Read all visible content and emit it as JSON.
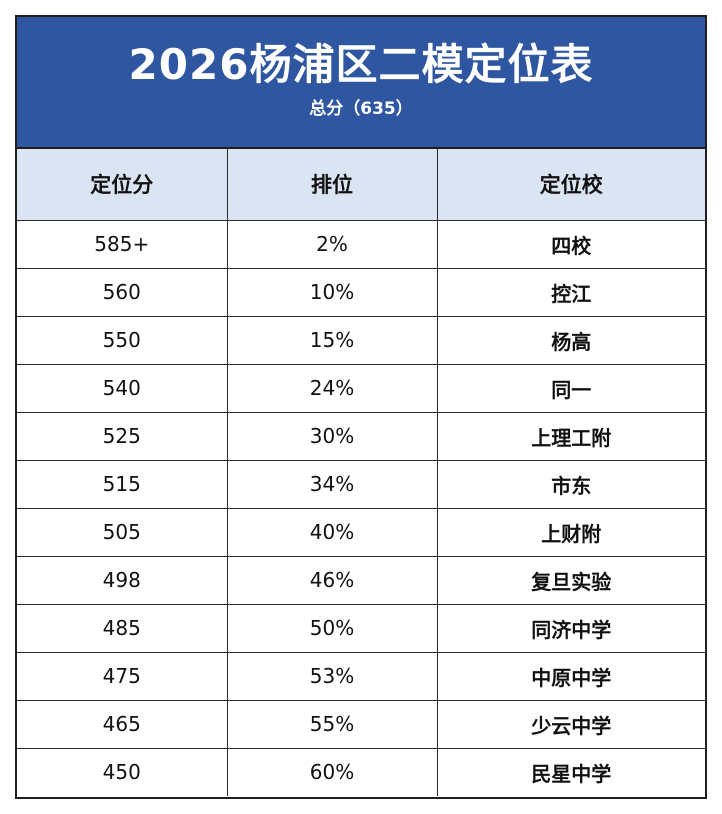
{
  "header": {
    "title": "2026杨浦区二模定位表",
    "subtitle": "总分（635）"
  },
  "columns": [
    "定位分",
    "排位",
    "定位校"
  ],
  "rows": [
    {
      "score": "585+",
      "rank": "2%",
      "school": "四校"
    },
    {
      "score": "560",
      "rank": "10%",
      "school": "控江"
    },
    {
      "score": "550",
      "rank": "15%",
      "school": "杨高"
    },
    {
      "score": "540",
      "rank": "24%",
      "school": "同一"
    },
    {
      "score": "525",
      "rank": "30%",
      "school": "上理工附"
    },
    {
      "score": "515",
      "rank": "34%",
      "school": "市东"
    },
    {
      "score": "505",
      "rank": "40%",
      "school": "上财附"
    },
    {
      "score": "498",
      "rank": "46%",
      "school": "复旦实验"
    },
    {
      "score": "485",
      "rank": "50%",
      "school": "同济中学"
    },
    {
      "score": "475",
      "rank": "53%",
      "school": "中原中学"
    },
    {
      "score": "465",
      "rank": "55%",
      "school": "少云中学"
    },
    {
      "score": "450",
      "rank": "60%",
      "school": "民星中学"
    }
  ],
  "colors": {
    "banner": "#2f56a0",
    "header_row": "#dbe4f2"
  }
}
